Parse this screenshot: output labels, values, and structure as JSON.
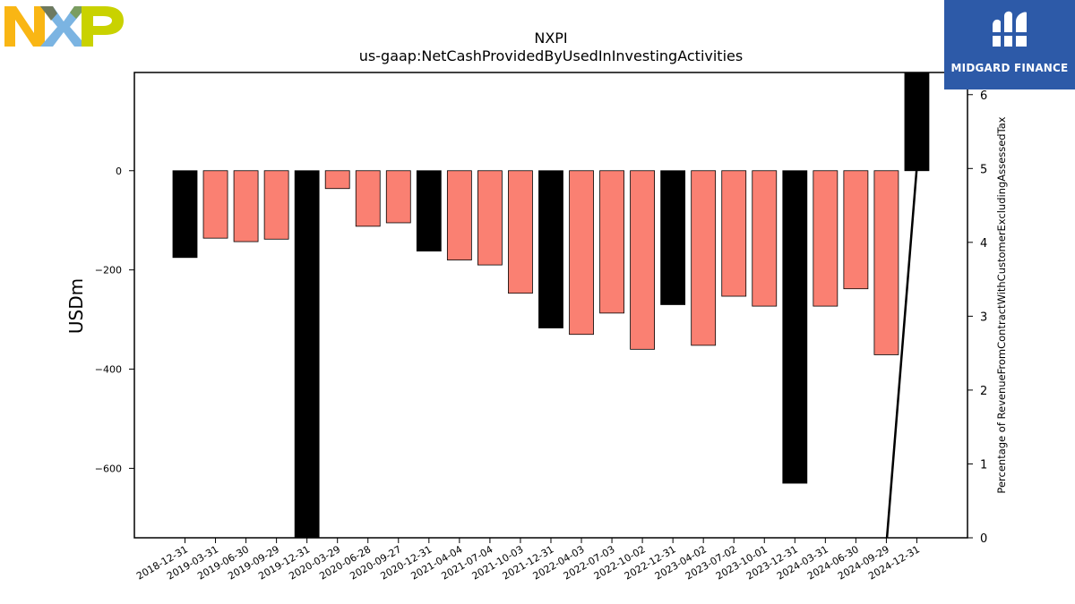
{
  "chart_data": {
    "type": "bar",
    "title": "NXPI",
    "subtitle": "us-gaap:NetCashProvidedByUsedInInvestingActivities",
    "ylabel": "USDm",
    "ylabel_right": "Percentage of RevenueFromContractWithCustomerExcludingAssessedTax",
    "ylim": [
      -740,
      198
    ],
    "ylim_right": [
      0,
      6.3
    ],
    "yticks": [
      0,
      -200,
      -400,
      -600
    ],
    "yticks_right": [
      0,
      1,
      2,
      3,
      4,
      5,
      6
    ],
    "grid": false,
    "categories": [
      "2018-12-31",
      "2019-03-31",
      "2019-06-30",
      "2019-09-29",
      "2019-12-31",
      "2020-03-29",
      "2020-06-28",
      "2020-09-27",
      "2020-12-31",
      "2021-04-04",
      "2021-07-04",
      "2021-10-03",
      "2021-12-31",
      "2022-04-03",
      "2022-07-03",
      "2022-10-02",
      "2022-12-31",
      "2023-04-02",
      "2023-07-02",
      "2023-10-01",
      "2023-12-31",
      "2024-03-31",
      "2024-06-30",
      "2024-09-29",
      "2024-12-31"
    ],
    "series": [
      {
        "values": [
          -175,
          -136,
          -143,
          -138,
          -760,
          -36,
          -112,
          -105,
          -162,
          -180,
          -190,
          -247,
          -317,
          -330,
          -287,
          -360,
          -270,
          -352,
          -253,
          -273,
          -630,
          -273,
          -238,
          -371,
          198
        ],
        "colors": [
          "#000000",
          "#fa8072",
          "#fa8072",
          "#fa8072",
          "#000000",
          "#fa8072",
          "#fa8072",
          "#fa8072",
          "#000000",
          "#fa8072",
          "#fa8072",
          "#fa8072",
          "#000000",
          "#fa8072",
          "#fa8072",
          "#fa8072",
          "#000000",
          "#fa8072",
          "#fa8072",
          "#fa8072",
          "#000000",
          "#fa8072",
          "#fa8072",
          "#fa8072",
          "#000000"
        ]
      },
      {
        "type": "line",
        "axis": "right",
        "color": "#000000",
        "points": [
          [
            23,
            -0.1
          ],
          [
            24,
            5.02
          ],
          [
            24.25,
            6.3
          ]
        ]
      }
    ]
  },
  "logos": {
    "left": {
      "text": "NXP",
      "colors": [
        "#f9b614",
        "#7bb4e2",
        "#c9d200"
      ]
    },
    "right": {
      "text": "MIDGARD FINANCE",
      "color": "#2d5aa8"
    }
  }
}
